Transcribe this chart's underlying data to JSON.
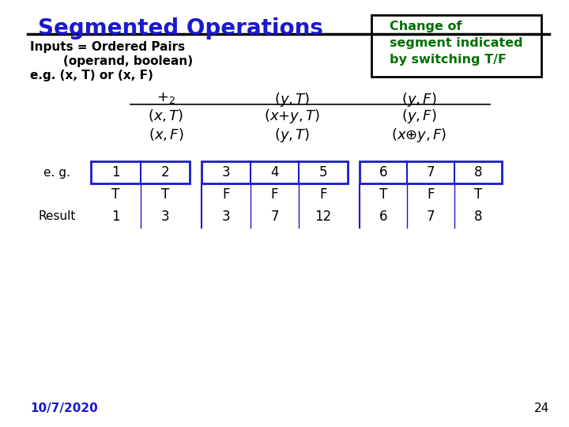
{
  "title": "Segmented Operations",
  "title_color": "#1a1acc",
  "bg_color": "#ffffff",
  "left_line1": "Inputs = Ordered Pairs",
  "left_line2": "        (operand, boolean)",
  "left_line3": "e.g. (x, T) or (x, F)",
  "box_text": "Change of\nsegment indicated\nby switching T/F",
  "box_color": "#007000",
  "navy": "#1a1acc",
  "eg_row": [
    "1",
    "2",
    "3",
    "4",
    "5",
    "6",
    "7",
    "8"
  ],
  "bool_row": [
    "T",
    "T",
    "F",
    "F",
    "F",
    "T",
    "F",
    "T"
  ],
  "result_row": [
    "1",
    "3",
    "3",
    "7",
    "12",
    "6",
    "7",
    "8"
  ],
  "date_text": "10/7/2020",
  "page_num": "24"
}
